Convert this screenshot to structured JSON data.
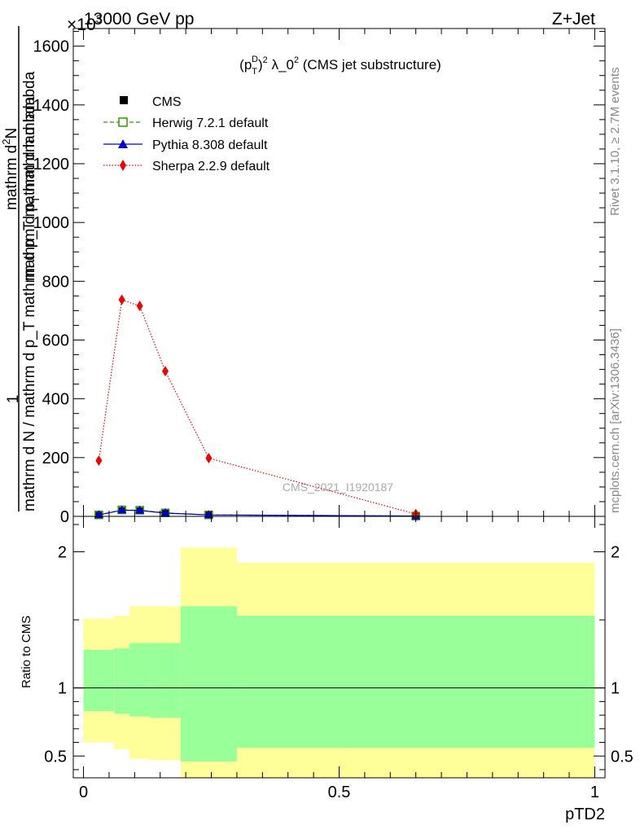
{
  "header": {
    "collision": "13000 GeV pp",
    "process": "Z+Jet",
    "exponent_label": "×10",
    "exponent_power": "3",
    "side_label_top": "Rivet 3.1.10, ≥ 2.7M events",
    "side_label_bottom": "mcplots.cern.ch [arXiv:1306.3436]",
    "watermark": "CMS_2021_I1920187"
  },
  "chart_data": [
    {
      "type": "line",
      "panel": "main",
      "title": "(p_T^D)^2 λ_0^2 (CMS jet substructure)",
      "title_parts": {
        "open": "(p",
        "sub": "T",
        "sup_D": "D",
        "close": ")",
        "sup2": "2",
        "mid": " λ_0",
        "sup3": "2",
        "tail": " (CMS jet substructure)"
      },
      "ylabel_numerator": "1",
      "ylabel_denominator": "mathrm d N / mathrm d p_T mathrm d p_T mathrm d lambda",
      "ylabel_top": "mathrm d^2N",
      "ylabel_top_text": "mathrm d",
      "ylabel_top_sup": "2",
      "ylabel_top_tail": "N",
      "ylabel_mid_text": "mathrm d p",
      "ylabel_mid_sub": "T",
      "ylabel_mid_tail": " mathrm d lambda",
      "ylim": [
        0,
        1660
      ],
      "xlim": [
        -0.02,
        1.02
      ],
      "y_ticks": [
        0,
        200,
        400,
        600,
        800,
        1000,
        1200,
        1400,
        1600
      ],
      "y_tick_labels": [
        "0",
        "200",
        "400",
        "600",
        "800",
        "1000",
        "1200",
        "1400",
        "1600"
      ],
      "legend_position": "top-left",
      "series": [
        {
          "name": "CMS",
          "color": "#000000",
          "marker": "square",
          "x": [
            0.03,
            0.075,
            0.11,
            0.16,
            0.245,
            0.65
          ],
          "y": [
            4,
            20,
            19,
            11,
            5,
            1
          ]
        },
        {
          "name": "Herwig 7.2.1 default",
          "color": "#339900",
          "marker": "open-square",
          "dash": "dashed",
          "x": [
            0.03,
            0.075,
            0.11,
            0.16,
            0.245,
            0.65
          ],
          "y": [
            5,
            22,
            21,
            12,
            5,
            1
          ]
        },
        {
          "name": "Pythia 8.308 default",
          "color": "#0000cc",
          "marker": "triangle",
          "dash": "solid",
          "x": [
            0.03,
            0.075,
            0.11,
            0.16,
            0.245,
            0.65
          ],
          "y": [
            5,
            21,
            20,
            11,
            5,
            1
          ]
        },
        {
          "name": "Sherpa 2.2.9 default",
          "color": "#ee0000",
          "marker": "diamond",
          "dash": "dotted",
          "x": [
            0.03,
            0.075,
            0.11,
            0.16,
            0.245,
            0.65
          ],
          "y": [
            190,
            737,
            716,
            494,
            198,
            8
          ]
        }
      ]
    },
    {
      "type": "area",
      "panel": "ratio",
      "xlabel": "pTD2",
      "ylabel": "Ratio to CMS",
      "ylim": [
        0.34,
        2.26
      ],
      "xlim": [
        -0.02,
        1.02
      ],
      "y_ticks": [
        0.5,
        1,
        2
      ],
      "y_tick_labels": [
        "0.5",
        "1",
        "2"
      ],
      "x_ticks": [
        0,
        0.5,
        1
      ],
      "x_tick_labels": [
        "0",
        "0.5",
        "1"
      ],
      "reference_line": 1,
      "bands": [
        {
          "x_lo": 0.0,
          "x_hi": 0.06,
          "in_lo": 0.83,
          "in_hi": 1.28,
          "out_lo": 0.6,
          "out_hi": 1.51
        },
        {
          "x_lo": 0.06,
          "x_hi": 0.09,
          "in_lo": 0.81,
          "in_hi": 1.29,
          "out_lo": 0.55,
          "out_hi": 1.53
        },
        {
          "x_lo": 0.09,
          "x_hi": 0.13,
          "in_lo": 0.79,
          "in_hi": 1.33,
          "out_lo": 0.48,
          "out_hi": 1.6
        },
        {
          "x_lo": 0.13,
          "x_hi": 0.19,
          "in_lo": 0.78,
          "in_hi": 1.33,
          "out_lo": 0.47,
          "out_hi": 1.6
        },
        {
          "x_lo": 0.19,
          "x_hi": 0.3,
          "in_lo": 0.46,
          "in_hi": 1.6,
          "out_lo": 0.2,
          "out_hi": 2.03
        },
        {
          "x_lo": 0.3,
          "x_hi": 1.0,
          "in_lo": 0.56,
          "in_hi": 1.53,
          "out_lo": 0.2,
          "out_hi": 1.92
        }
      ],
      "band_colors": {
        "inner": "#99ff99",
        "outer": "#ffff99"
      }
    }
  ]
}
